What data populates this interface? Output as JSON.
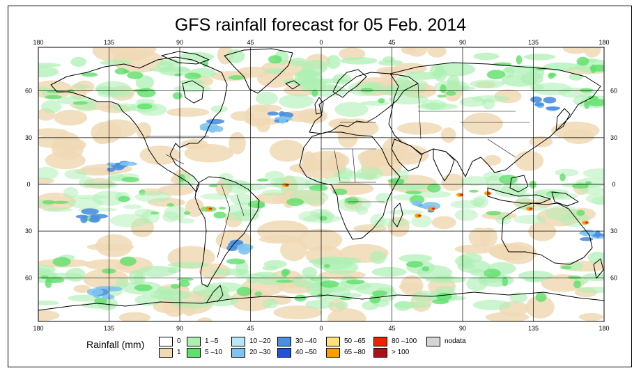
{
  "title": "GFS rainfall forecast for 05 Feb. 2014",
  "map": {
    "top_lon_labels": [
      "180",
      "135",
      "90",
      "45",
      "0",
      "45",
      "90",
      "135",
      "180"
    ],
    "bottom_lon_labels": [
      "180",
      "135",
      "90",
      "45",
      "0",
      "45",
      "90",
      "135",
      "180"
    ],
    "left_lat_labels": [
      "60",
      "30",
      "0",
      "30",
      "60"
    ],
    "right_lat_labels": [
      "60",
      "30",
      "0",
      "30",
      "60"
    ],
    "lon_range": [
      -180,
      180
    ],
    "lat_range": [
      -88,
      88
    ],
    "grid_lons": [
      -180,
      -135,
      -90,
      -45,
      0,
      45,
      90,
      135,
      180
    ],
    "grid_lats": [
      60,
      30,
      0,
      -30,
      -60
    ]
  },
  "legend": {
    "title": "Rainfall (mm)",
    "items": [
      {
        "label": "0",
        "color": "#ffffff"
      },
      {
        "label": "1",
        "color": "#f0d9b5"
      },
      {
        "label": "1 –5",
        "color": "#aef0b4"
      },
      {
        "label": "5 –10",
        "color": "#5fe06a"
      },
      {
        "label": "10 –20",
        "color": "#b8e8f5"
      },
      {
        "label": "20 –30",
        "color": "#7fc4f0"
      },
      {
        "label": "30 –40",
        "color": "#4a8fe0"
      },
      {
        "label": "40 –50",
        "color": "#1f56d8"
      },
      {
        "label": "50 –65",
        "color": "#ffe27a"
      },
      {
        "label": "65 –80",
        "color": "#ff9d00"
      },
      {
        "label": "80 –100",
        "color": "#ee2200"
      },
      {
        "label": "> 100",
        "color": "#a8101a"
      },
      {
        "label": "nodata",
        "color": "#d6d6d6"
      }
    ]
  }
}
